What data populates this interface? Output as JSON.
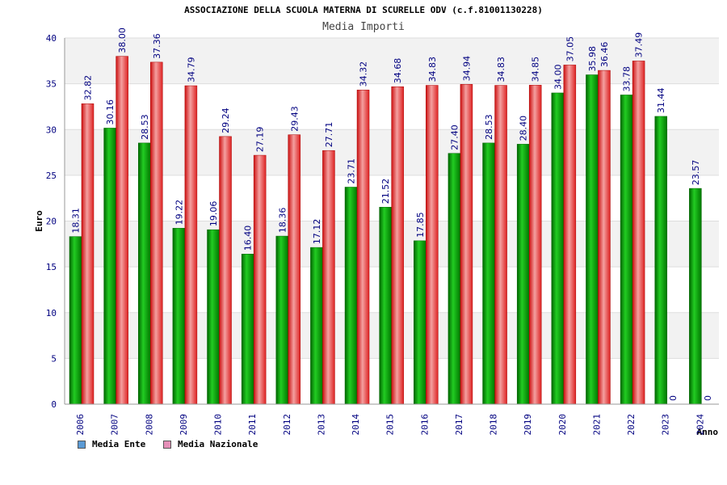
{
  "header": {
    "title": "ASSOCIAZIONE DELLA SCUOLA MATERNA DI SCURELLE ODV (c.f.81001130228)",
    "subtitle": "Media Importi"
  },
  "chart_data": {
    "type": "bar",
    "title": "ASSOCIAZIONE DELLA SCUOLA MATERNA DI SCURELLE ODV (c.f.81001130228)",
    "subtitle": "Media Importi",
    "xlabel": "Anno",
    "ylabel": "Euro",
    "ylim": [
      0,
      40
    ],
    "yticks": [
      "0",
      "5",
      "10",
      "15",
      "20",
      "25",
      "30",
      "35",
      "40"
    ],
    "grid": true,
    "legend_position": "bottom-left",
    "categories": [
      "2006",
      "2007",
      "2008",
      "2009",
      "2010",
      "2011",
      "2012",
      "2013",
      "2014",
      "2015",
      "2016",
      "2017",
      "2018",
      "2019",
      "2020",
      "2021",
      "2022",
      "2023",
      "2024"
    ],
    "series": [
      {
        "name": "Media Ente",
        "color": "#00aa00",
        "legend_color": "#5b9bd5",
        "values": [
          18.31,
          30.16,
          28.53,
          19.22,
          19.06,
          16.4,
          18.36,
          17.12,
          23.71,
          21.52,
          17.85,
          27.4,
          28.53,
          28.4,
          34.0,
          35.98,
          33.78,
          31.44,
          23.57
        ],
        "labels": [
          "18.31",
          "30.16",
          "28.53",
          "19.22",
          "19.06",
          "16.40",
          "18.36",
          "17.12",
          "23.71",
          "21.52",
          "17.85",
          "27.40",
          "28.53",
          "28.40",
          "34.00",
          "35.98",
          "33.78",
          "31.44",
          "23.57"
        ]
      },
      {
        "name": "Media Nazionale",
        "color": "#dd2222",
        "legend_color": "#e58fb8",
        "values": [
          32.82,
          38.0,
          37.36,
          34.79,
          29.24,
          27.19,
          29.43,
          27.71,
          34.32,
          34.68,
          34.83,
          34.94,
          34.83,
          34.85,
          37.05,
          36.46,
          37.49,
          0,
          0
        ],
        "labels": [
          "32.82",
          "38.00",
          "37.36",
          "34.79",
          "29.24",
          "27.19",
          "29.43",
          "27.71",
          "34.32",
          "34.68",
          "34.83",
          "34.94",
          "34.83",
          "34.85",
          "37.05",
          "36.46",
          "37.49",
          "0",
          "0"
        ]
      }
    ]
  }
}
